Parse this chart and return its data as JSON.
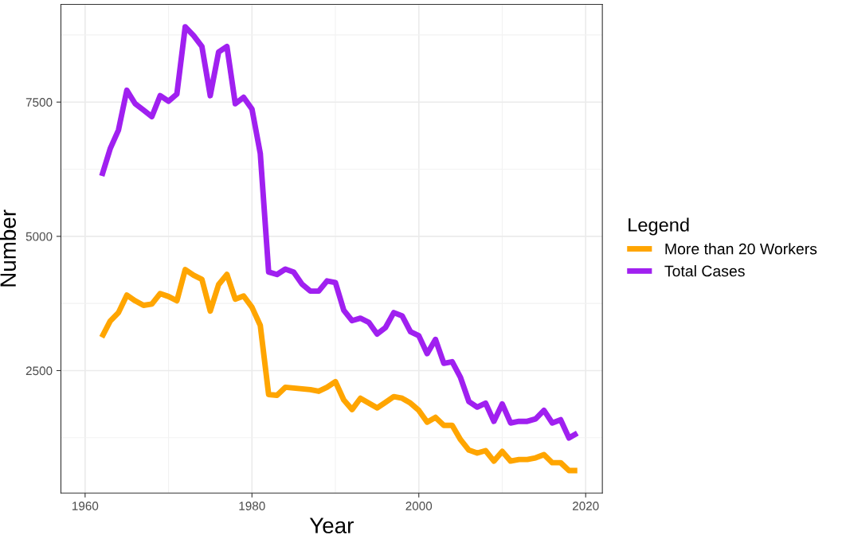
{
  "chart_data": {
    "type": "line",
    "xlabel": "Year",
    "ylabel": "Number",
    "legend_title": "Legend",
    "legend": "right",
    "x": [
      1962,
      1963,
      1964,
      1965,
      1966,
      1967,
      1968,
      1969,
      1970,
      1971,
      1972,
      1973,
      1974,
      1975,
      1976,
      1977,
      1978,
      1979,
      1980,
      1981,
      1982,
      1983,
      1984,
      1985,
      1986,
      1987,
      1988,
      1989,
      1990,
      1991,
      1992,
      1993,
      1994,
      1995,
      1996,
      1997,
      1998,
      1999,
      2000,
      2001,
      2002,
      2003,
      2004,
      2005,
      2006,
      2007,
      2008,
      2009,
      2010,
      2011,
      2012,
      2013,
      2014,
      2015,
      2016,
      2017,
      2018,
      2019
    ],
    "series": [
      {
        "name": "More than 20 Workers",
        "color": "#ffa500",
        "values": [
          3120,
          3420,
          3580,
          3905,
          3800,
          3715,
          3740,
          3935,
          3880,
          3800,
          4380,
          4275,
          4200,
          3610,
          4100,
          4290,
          3830,
          3890,
          3680,
          3340,
          2055,
          2040,
          2190,
          2175,
          2160,
          2145,
          2115,
          2190,
          2295,
          1955,
          1775,
          1985,
          1895,
          1805,
          1910,
          2015,
          1985,
          1895,
          1760,
          1540,
          1630,
          1480,
          1480,
          1215,
          1020,
          965,
          1010,
          815,
          995,
          815,
          845,
          845,
          875,
          935,
          785,
          785,
          640,
          640
        ]
      },
      {
        "name": "Total Cases",
        "color": "#a020f0",
        "values": [
          6125,
          6630,
          6980,
          7720,
          7470,
          7350,
          7230,
          7620,
          7515,
          7650,
          8900,
          8740,
          8535,
          7620,
          8430,
          8535,
          7470,
          7590,
          7370,
          6540,
          4335,
          4290,
          4390,
          4335,
          4110,
          3980,
          3980,
          4170,
          4140,
          3625,
          3430,
          3475,
          3400,
          3180,
          3300,
          3580,
          3520,
          3225,
          3150,
          2815,
          3080,
          2635,
          2665,
          2370,
          1925,
          1820,
          1895,
          1555,
          1880,
          1525,
          1555,
          1555,
          1600,
          1760,
          1525,
          1585,
          1245,
          1335
        ]
      }
    ],
    "xlim": [
      1957.1,
      2022.0
    ],
    "ylim": [
      220,
      9320
    ],
    "xticks": [
      1960,
      1980,
      2000,
      2020
    ],
    "yticks": [
      2500,
      5000,
      7500
    ],
    "grid": true,
    "line_style": "solid",
    "marker": "none"
  }
}
